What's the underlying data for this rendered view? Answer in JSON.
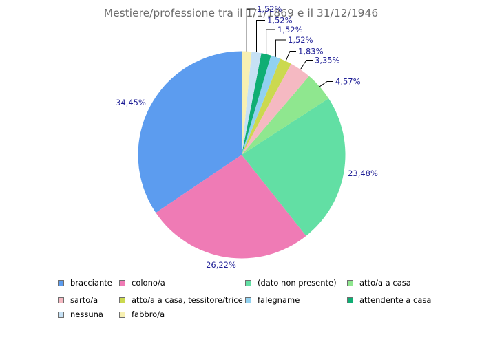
{
  "title": "Mestiere/professione tra il 1/1/1869 e il 31/12/1946",
  "colors": {
    "background": "#FFFFFF",
    "title_text": "#6B6B6B",
    "percent_label_text": "#1F1F96",
    "legend_text": "#000000",
    "callout_line": "#000000",
    "swatch_border": "#6E6E6E"
  },
  "chart_data": {
    "type": "pie",
    "title": "Mestiere/professione tra il 1/1/1869 e il 31/12/1946",
    "unit": "%",
    "value_format": "percent with comma decimal separator",
    "start_angle": "12 o'clock",
    "direction": "counterclockwise",
    "legend_position": "bottom, 3 rows x 4 columns",
    "slices": [
      {
        "label": "bracciante",
        "value": 34.45,
        "display": "34,45%",
        "color": "#5C9CEF"
      },
      {
        "label": "colono/a",
        "value": 26.22,
        "display": "26,22%",
        "color": "#EF7BB5"
      },
      {
        "label": "(dato non presente)",
        "value": 23.48,
        "display": "23,48%",
        "color": "#62DFA4"
      },
      {
        "label": "atto/a a casa",
        "value": 4.57,
        "display": "4,57%",
        "color": "#8FE78F"
      },
      {
        "label": "sarto/a",
        "value": 3.35,
        "display": "3,35%",
        "color": "#F5B9C2"
      },
      {
        "label": "atto/a a casa, tessitore/trice",
        "value": 1.83,
        "display": "1,83%",
        "color": "#CBD94F"
      },
      {
        "label": "falegname",
        "value": 1.52,
        "display": "1,52%",
        "color": "#91D1F0"
      },
      {
        "label": "attendente a casa",
        "value": 1.52,
        "display": "1,52%",
        "color": "#0FAE74"
      },
      {
        "label": "nessuna",
        "value": 1.52,
        "display": "1,52%",
        "color": "#C6E1F5"
      },
      {
        "label": "fabbro/a",
        "value": 1.52,
        "display": "1,52%",
        "color": "#F7F0B2"
      }
    ]
  }
}
